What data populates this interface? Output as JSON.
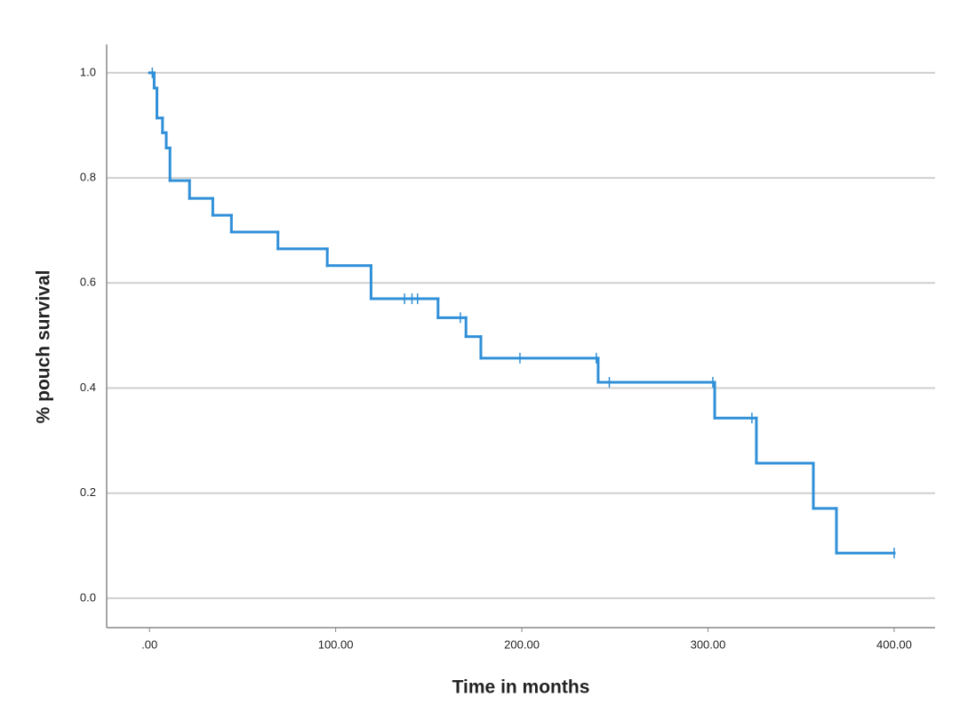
{
  "chart_data": {
    "type": "step",
    "x_label": "Time in months",
    "y_label": "% pouch survival",
    "color": "#2f8fd8",
    "grid": true,
    "x": [
      0,
      2.5,
      4,
      7,
      9,
      11,
      21.5,
      34,
      44,
      69,
      95.5,
      119,
      155,
      170,
      178,
      241,
      303.6,
      326,
      356.6,
      369,
      400
    ],
    "values": [
      1.0,
      0.971,
      0.914,
      0.886,
      0.857,
      0.795,
      0.761,
      0.729,
      0.697,
      0.665,
      0.633,
      0.57,
      0.534,
      0.498,
      0.457,
      0.411,
      0.343,
      0.257,
      0.171,
      0.086,
      0.086
    ],
    "censored": {
      "x": [
        1.5,
        137,
        141,
        144,
        167,
        199,
        240,
        247,
        302.6,
        323.6,
        400
      ],
      "values": [
        1.0,
        0.57,
        0.57,
        0.57,
        0.534,
        0.457,
        0.457,
        0.411,
        0.411,
        0.343,
        0.086
      ]
    },
    "xlim": [
      -23,
      422
    ],
    "ylim": [
      -0.056,
      1.054
    ],
    "xticks": [
      {
        "value": 0,
        "label": ".00"
      },
      {
        "value": 100,
        "label": "100.00"
      },
      {
        "value": 200,
        "label": "200.00"
      },
      {
        "value": 300,
        "label": "300.00"
      },
      {
        "value": 400,
        "label": "400.00"
      }
    ],
    "yticks": [
      {
        "value": 0,
        "label": "0.0"
      },
      {
        "value": 0.2,
        "label": "0.2"
      },
      {
        "value": 0.4,
        "label": "0.4"
      },
      {
        "value": 0.6,
        "label": "0.6"
      },
      {
        "value": 0.8,
        "label": "0.8"
      },
      {
        "value": 1.0,
        "label": "1.0"
      }
    ]
  }
}
